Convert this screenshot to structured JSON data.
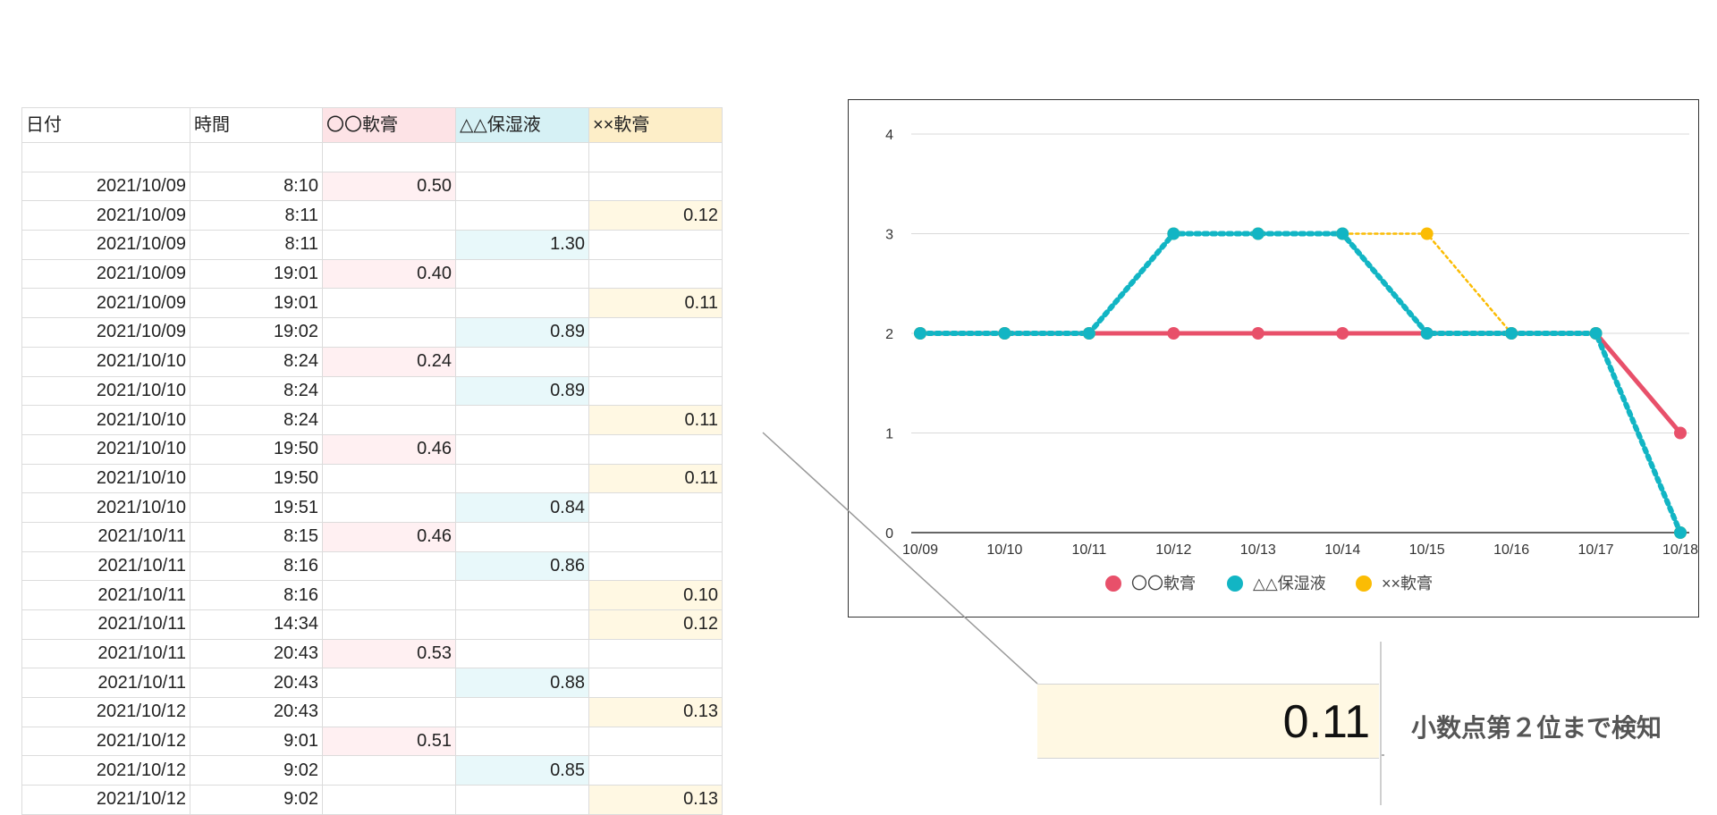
{
  "table": {
    "headers": [
      "日付",
      "時間",
      "〇〇軟膏",
      "△△保湿液",
      "××軟膏"
    ],
    "rows": [
      {
        "date": "",
        "time": "",
        "a": "",
        "b": "",
        "c": ""
      },
      {
        "date": "2021/10/09",
        "time": "8:10",
        "a": "0.50",
        "b": "",
        "c": ""
      },
      {
        "date": "2021/10/09",
        "time": "8:11",
        "a": "",
        "b": "",
        "c": "0.12"
      },
      {
        "date": "2021/10/09",
        "time": "8:11",
        "a": "",
        "b": "1.30",
        "c": ""
      },
      {
        "date": "2021/10/09",
        "time": "19:01",
        "a": "0.40",
        "b": "",
        "c": ""
      },
      {
        "date": "2021/10/09",
        "time": "19:01",
        "a": "",
        "b": "",
        "c": "0.11"
      },
      {
        "date": "2021/10/09",
        "time": "19:02",
        "a": "",
        "b": "0.89",
        "c": ""
      },
      {
        "date": "2021/10/10",
        "time": "8:24",
        "a": "0.24",
        "b": "",
        "c": ""
      },
      {
        "date": "2021/10/10",
        "time": "8:24",
        "a": "",
        "b": "0.89",
        "c": ""
      },
      {
        "date": "2021/10/10",
        "time": "8:24",
        "a": "",
        "b": "",
        "c": "0.11"
      },
      {
        "date": "2021/10/10",
        "time": "19:50",
        "a": "0.46",
        "b": "",
        "c": ""
      },
      {
        "date": "2021/10/10",
        "time": "19:50",
        "a": "",
        "b": "",
        "c": "0.11"
      },
      {
        "date": "2021/10/10",
        "time": "19:51",
        "a": "",
        "b": "0.84",
        "c": ""
      },
      {
        "date": "2021/10/11",
        "time": "8:15",
        "a": "0.46",
        "b": "",
        "c": ""
      },
      {
        "date": "2021/10/11",
        "time": "8:16",
        "a": "",
        "b": "0.86",
        "c": ""
      },
      {
        "date": "2021/10/11",
        "time": "8:16",
        "a": "",
        "b": "",
        "c": "0.10"
      },
      {
        "date": "2021/10/11",
        "time": "14:34",
        "a": "",
        "b": "",
        "c": "0.12"
      },
      {
        "date": "2021/10/11",
        "time": "20:43",
        "a": "0.53",
        "b": "",
        "c": ""
      },
      {
        "date": "2021/10/11",
        "time": "20:43",
        "a": "",
        "b": "0.88",
        "c": ""
      },
      {
        "date": "2021/10/12",
        "time": "20:43",
        "a": "",
        "b": "",
        "c": "0.13"
      },
      {
        "date": "2021/10/12",
        "time": "9:01",
        "a": "0.51",
        "b": "",
        "c": ""
      },
      {
        "date": "2021/10/12",
        "time": "9:02",
        "a": "",
        "b": "0.85",
        "c": ""
      },
      {
        "date": "2021/10/12",
        "time": "9:02",
        "a": "",
        "b": "",
        "c": "0.13"
      }
    ]
  },
  "colors": {
    "series_a": "#e8506a",
    "series_b": "#12b5c4",
    "series_c": "#fbbc04"
  },
  "chart_data": {
    "type": "line",
    "categories": [
      "10/09",
      "10/10",
      "10/11",
      "10/12",
      "10/13",
      "10/14",
      "10/15",
      "10/16",
      "10/17",
      "10/18"
    ],
    "series": [
      {
        "name": "〇〇軟膏",
        "values": [
          2,
          2,
          2,
          2,
          2,
          2,
          2,
          2,
          2,
          1
        ]
      },
      {
        "name": "△△保湿液",
        "values": [
          2,
          2,
          2,
          3,
          3,
          3,
          2,
          2,
          2,
          0
        ]
      },
      {
        "name": "××軟膏",
        "values": [
          2,
          2,
          2,
          3,
          3,
          3,
          3,
          2,
          2,
          0
        ]
      }
    ],
    "ylim": [
      0,
      4
    ],
    "yticks": [
      0,
      1,
      2,
      3,
      4
    ],
    "grid": true,
    "legend": "bottom-center"
  },
  "zoom": {
    "value": "0.11",
    "caption": "小数点第２位まで検知"
  }
}
